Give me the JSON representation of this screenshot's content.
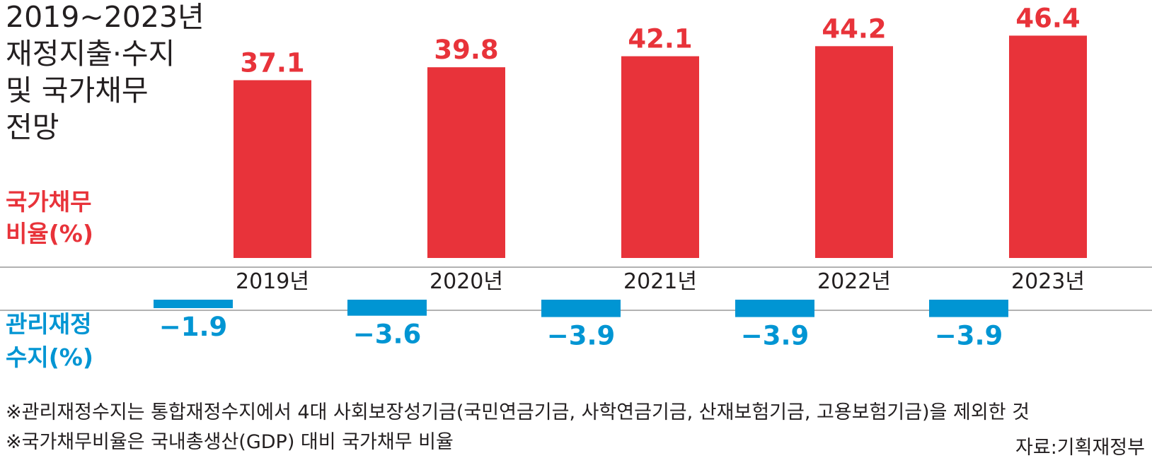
{
  "title": [
    "2019~2023년",
    "재정지출·수지",
    "및 국가채무",
    "전망"
  ],
  "colors": {
    "debt": "#e8333a",
    "balance": "#0095d3",
    "axis": "#b2b2b2",
    "text": "#231f20"
  },
  "chart_data": {
    "type": "bar",
    "categories": [
      "2019년",
      "2020년",
      "2021년",
      "2022년",
      "2023년"
    ],
    "series": [
      {
        "name_lines": [
          "국가채무",
          "비율(%)"
        ],
        "values": [
          37.1,
          39.8,
          42.1,
          44.2,
          46.4
        ],
        "labels": [
          "37.1",
          "39.8",
          "42.1",
          "44.2",
          "46.4"
        ]
      },
      {
        "name_lines": [
          "관리재정",
          "수지(%)"
        ],
        "values": [
          -1.9,
          -3.6,
          -3.9,
          -3.9,
          -3.9
        ],
        "labels": [
          "−1.9",
          "−3.6",
          "−3.9",
          "−3.9",
          "−3.9"
        ]
      }
    ]
  },
  "notes": [
    "※관리재정수지는 통합재정수지에서 4대 사회보장성기금(국민연금기금, 사학연금기금, 산재보험기금, 고용보험기금)을 제외한 것",
    "※국가채무비율은 국내총생산(GDP) 대비 국가채무 비율"
  ],
  "source": "자료:기획재정부"
}
